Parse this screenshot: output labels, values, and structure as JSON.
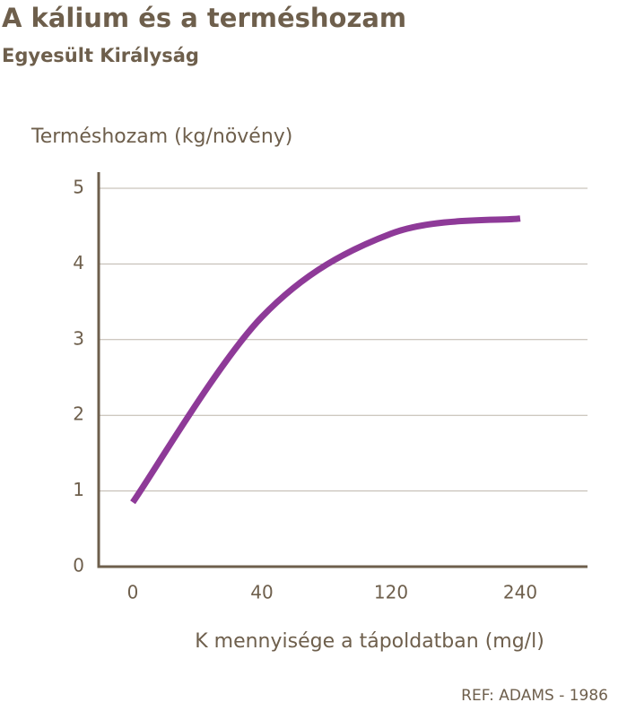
{
  "chart_data": {
    "type": "line",
    "title": "A kálium és a terméshozam",
    "subtitle": "Egyesült Királyság",
    "y_label": "Terméshozam (kg/növény)",
    "x_label": "K mennyisége a tápoldatban (mg/l)",
    "source": "REF: ADAMS - 1986",
    "categories": [
      "0",
      "40",
      "120",
      "240"
    ],
    "values": [
      0.85,
      3.3,
      4.4,
      4.6
    ],
    "color": "#8e3a98",
    "ylim": [
      0,
      5
    ],
    "yticks": [
      0,
      1,
      2,
      3,
      4,
      5
    ],
    "grid": true
  }
}
